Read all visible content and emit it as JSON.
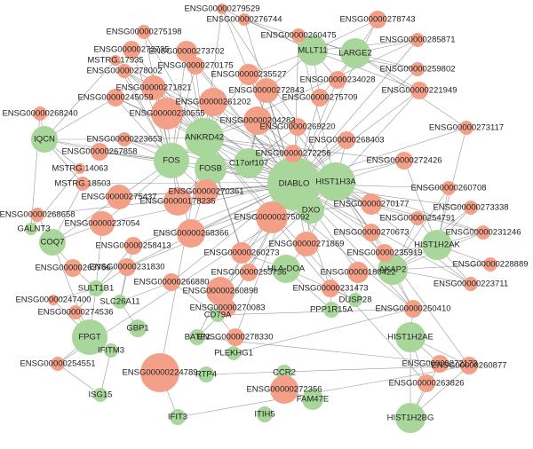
{
  "nodes": [
    {
      "label": "DIABLO",
      "color": "#a9d69b"
    },
    {
      "label": "HIST1H3A",
      "color": "#a9d69b"
    },
    {
      "label": "ANKRD42",
      "color": "#a9d69b"
    },
    {
      "label": "FOS",
      "color": "#a9d69b"
    },
    {
      "label": "FOSB",
      "color": "#a9d69b"
    },
    {
      "label": "C17orf107",
      "color": "#a9d69b"
    },
    {
      "label": "MLLT11",
      "color": "#a9d69b"
    },
    {
      "label": "LARGE2",
      "color": "#a9d69b"
    },
    {
      "label": "IQCN",
      "color": "#a9d69b"
    },
    {
      "label": "COQ7",
      "color": "#a9d69b"
    },
    {
      "label": "DXO",
      "color": "#a9d69b"
    },
    {
      "label": "HLA-DOA",
      "color": "#a9d69b"
    },
    {
      "label": "AKAP2",
      "color": "#a9d69b"
    },
    {
      "label": "HIST1H2AK",
      "color": "#a9d69b"
    },
    {
      "label": "HIST1H2AE",
      "color": "#a9d69b"
    },
    {
      "label": "HIST1H2BG",
      "color": "#a9d69b"
    },
    {
      "label": "FPGT",
      "color": "#a9d69b"
    },
    {
      "label": "SULT1B1",
      "color": "#a9d69b"
    },
    {
      "label": "PPP1R15A",
      "color": "#a9d69b"
    },
    {
      "label": "DUSP28",
      "color": "#a9d69b"
    },
    {
      "label": "SLC26A11",
      "color": "#a9d69b"
    },
    {
      "label": "GBP1",
      "color": "#a9d69b"
    },
    {
      "label": "BATF2",
      "color": "#a9d69b"
    },
    {
      "label": "IFITM3",
      "color": "#a9d69b"
    },
    {
      "label": "ISG15",
      "color": "#a9d69b"
    },
    {
      "label": "IFIT3",
      "color": "#a9d69b"
    },
    {
      "label": "RTP4",
      "color": "#a9d69b"
    },
    {
      "label": "PLEKHG1",
      "color": "#a9d69b"
    },
    {
      "label": "CD79A",
      "color": "#a9d69b"
    },
    {
      "label": "CCR2",
      "color": "#a9d69b"
    },
    {
      "label": "ITIH5",
      "color": "#a9d69b"
    },
    {
      "label": "FAM47E",
      "color": "#a9d69b"
    },
    {
      "label": "GALNT3",
      "color": "#a9d69b"
    },
    {
      "label": "ENSG00000279529",
      "color": "#f4a088"
    },
    {
      "label": "ENSG00000276744",
      "color": "#f4a088"
    },
    {
      "label": "ENSG00000278743",
      "color": "#f4a088"
    },
    {
      "label": "ENSG00000260475",
      "color": "#f4a088"
    },
    {
      "label": "ENSG00000285871",
      "color": "#f4a088"
    },
    {
      "label": "ENSG00000275198",
      "color": "#f4a088"
    },
    {
      "label": "MSTRG.17935",
      "color": "#f4a088"
    },
    {
      "label": "ENSG00000272735",
      "color": "#f4a088"
    },
    {
      "label": "ENSG00000273702",
      "color": "#f4a088"
    },
    {
      "label": "ENSG00000278002",
      "color": "#f4a088"
    },
    {
      "label": "ENSG00000270175",
      "color": "#f4a088"
    },
    {
      "label": "ENSG00000259802",
      "color": "#f4a088"
    },
    {
      "label": "ENSG00000235527",
      "color": "#f4a088"
    },
    {
      "label": "ENSG00000271821",
      "color": "#f4a088"
    },
    {
      "label": "ENSG00000234028",
      "color": "#f4a088"
    },
    {
      "label": "ENSG00000221949",
      "color": "#f4a088"
    },
    {
      "label": "ENSG00000245059",
      "color": "#f4a088"
    },
    {
      "label": "ENSG00000272843",
      "color": "#f4a088"
    },
    {
      "label": "ENSG00000261202",
      "color": "#f4a088"
    },
    {
      "label": "ENSG00000275709",
      "color": "#f4a088"
    },
    {
      "label": "ENSG00000230555",
      "color": "#f4a088"
    },
    {
      "label": "ENSG00000204283",
      "color": "#f4a088"
    },
    {
      "label": "ENSG00000268240",
      "color": "#f4a088"
    },
    {
      "label": "ENSG00000269220",
      "color": "#f4a088"
    },
    {
      "label": "ENSG00000223653",
      "color": "#f4a088"
    },
    {
      "label": "ENSG00000273117",
      "color": "#f4a088"
    },
    {
      "label": "ENSG00000268403",
      "color": "#f4a088"
    },
    {
      "label": "ENSG00000267858",
      "color": "#f4a088"
    },
    {
      "label": "ENSG00000272256",
      "color": "#f4a088"
    },
    {
      "label": "MSTRG.14063",
      "color": "#f4a088"
    },
    {
      "label": "MSTRG.18503",
      "color": "#f4a088"
    },
    {
      "label": "ENSG00000270361",
      "color": "#f4a088"
    },
    {
      "label": "ENSG00000272426",
      "color": "#f4a088"
    },
    {
      "label": "ENSG00000275437",
      "color": "#f4a088"
    },
    {
      "label": "ENSG00000178235",
      "color": "#f4a088"
    },
    {
      "label": "ENSG00000260708",
      "color": "#f4a088"
    },
    {
      "label": "ENSG00000270177",
      "color": "#f4a088"
    },
    {
      "label": "ENSG00000254791",
      "color": "#f4a088"
    },
    {
      "label": "ENSG00000273338",
      "color": "#f4a088"
    },
    {
      "label": "ENSG00000268658",
      "color": "#f4a088"
    },
    {
      "label": "ENSG00000237054",
      "color": "#f4a088"
    },
    {
      "label": "ENSG00000275092",
      "color": "#f4a088"
    },
    {
      "label": "ENSG00000268366",
      "color": "#f4a088"
    },
    {
      "label": "ENSG00000270673",
      "color": "#f4a088"
    },
    {
      "label": "ENSG00000231246",
      "color": "#f4a088"
    },
    {
      "label": "ENSG00000271869",
      "color": "#f4a088"
    },
    {
      "label": "ENSG00000235919",
      "color": "#f4a088"
    },
    {
      "label": "ENSG00000258413",
      "color": "#f4a088"
    },
    {
      "label": "ENSG00000260273",
      "color": "#f4a088"
    },
    {
      "label": "ENSG00000263766",
      "color": "#f4a088"
    },
    {
      "label": "ENSG00000228889",
      "color": "#f4a088"
    },
    {
      "label": "ENSG00000231830",
      "color": "#f4a088"
    },
    {
      "label": "ENSG00000253736",
      "color": "#f4a088"
    },
    {
      "label": "ENSG00000180422",
      "color": "#f4a088"
    },
    {
      "label": "ENSG00000223711",
      "color": "#f4a088"
    },
    {
      "label": "ENSG00000266880",
      "color": "#f4a088"
    },
    {
      "label": "ENSG00000231473",
      "color": "#f4a088"
    },
    {
      "label": "ENSG00000260898",
      "color": "#f4a088"
    },
    {
      "label": "ENSG00000247400",
      "color": "#f4a088"
    },
    {
      "label": "ENSG00000270083",
      "color": "#f4a088"
    },
    {
      "label": "ENSG00000250410",
      "color": "#f4a088"
    },
    {
      "label": "ENSG00000274536",
      "color": "#f4a088"
    },
    {
      "label": "ENSG00000278330",
      "color": "#f4a088"
    },
    {
      "label": "ENSG00000254551",
      "color": "#f4a088"
    },
    {
      "label": "ENSG00000224789",
      "color": "#f4a088"
    },
    {
      "label": "ENSG00000272173",
      "color": "#f4a088"
    },
    {
      "label": "ENSG00000260877",
      "color": "#f4a088"
    },
    {
      "label": "ENSG00000272356",
      "color": "#f4a088"
    },
    {
      "label": "ENSG00000263826",
      "color": "#f4a088"
    }
  ]
}
